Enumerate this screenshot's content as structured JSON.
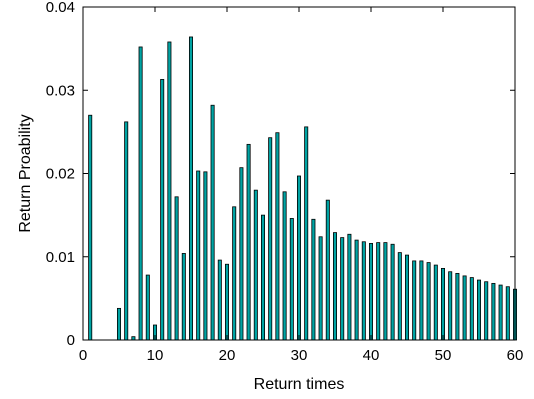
{
  "chart_data": {
    "type": "bar",
    "title": "",
    "xlabel": "Return times",
    "ylabel": "Return Proability",
    "xlim": [
      0,
      60
    ],
    "ylim": [
      0,
      0.04
    ],
    "x_ticks": [
      "0",
      "10",
      "20",
      "30",
      "40",
      "50",
      "60"
    ],
    "y_ticks": [
      "0",
      "0.01",
      "0.02",
      "0.03",
      "0.04"
    ],
    "grid": false,
    "bar_color": "#00a3a3",
    "x": [
      1,
      2,
      3,
      4,
      5,
      6,
      7,
      8,
      9,
      10,
      11,
      12,
      13,
      14,
      15,
      16,
      17,
      18,
      19,
      20,
      21,
      22,
      23,
      24,
      25,
      26,
      27,
      28,
      29,
      30,
      31,
      32,
      33,
      34,
      35,
      36,
      37,
      38,
      39,
      40,
      41,
      42,
      43,
      44,
      45,
      46,
      47,
      48,
      49,
      50,
      51,
      52,
      53,
      54,
      55,
      56,
      57,
      58,
      59,
      60
    ],
    "values": [
      0.027,
      0,
      0,
      0,
      0.0038,
      0.0262,
      0.0004,
      0.0352,
      0.0078,
      0.0018,
      0.0313,
      0.0358,
      0.0172,
      0.0104,
      0.0364,
      0.0203,
      0.0202,
      0.0282,
      0.0096,
      0.0091,
      0.016,
      0.0207,
      0.0235,
      0.018,
      0.015,
      0.0243,
      0.0249,
      0.0178,
      0.0146,
      0.0197,
      0.0256,
      0.0145,
      0.0124,
      0.0168,
      0.0129,
      0.0123,
      0.0127,
      0.012,
      0.0118,
      0.0116,
      0.0117,
      0.0117,
      0.0115,
      0.0105,
      0.0102,
      0.0095,
      0.0095,
      0.0093,
      0.009,
      0.0086,
      0.0082,
      0.008,
      0.0077,
      0.0075,
      0.0072,
      0.007,
      0.0068,
      0.0066,
      0.0064,
      0.0061
    ]
  }
}
